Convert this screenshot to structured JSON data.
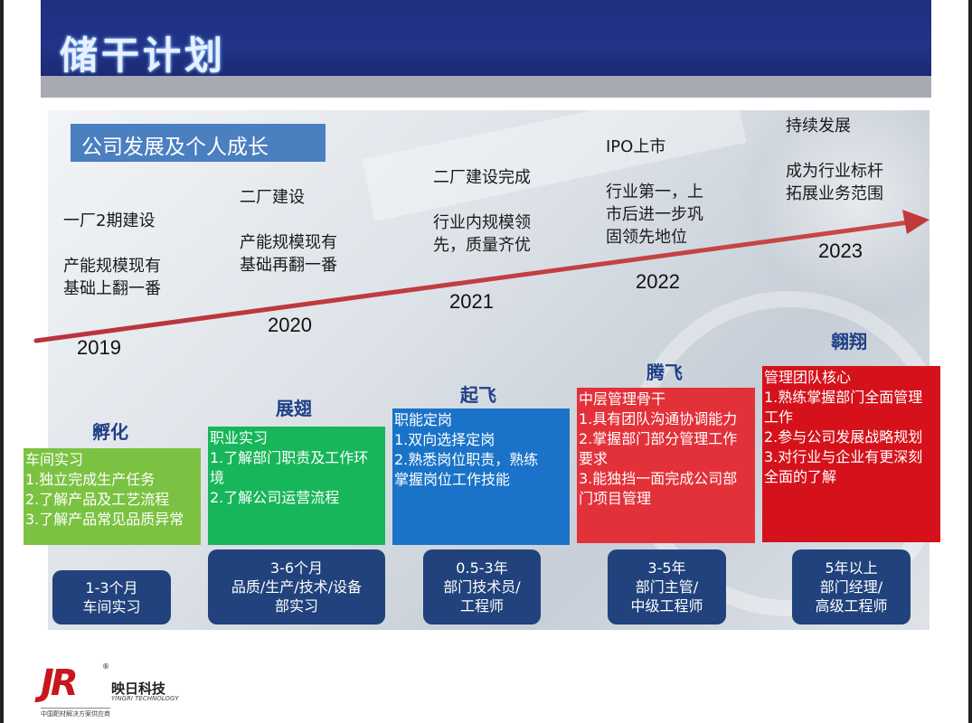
{
  "page": {
    "title": "储干计划"
  },
  "panel": {
    "subtitle": "公司发展及个人成长"
  },
  "milestones": [
    {
      "year": "2019",
      "lines": [
        "一厂2期建设",
        "",
        "产能规模现有",
        "基础上翻一番"
      ]
    },
    {
      "year": "2020",
      "lines": [
        "二厂建设",
        "",
        "产能规模现有",
        "基础再翻一番"
      ]
    },
    {
      "year": "2021",
      "lines": [
        "二厂建设完成",
        "",
        "行业内规模领",
        "先，质量齐优"
      ]
    },
    {
      "year": "2022",
      "lines": [
        "IPO上市",
        "",
        "行业第一，上",
        "市后进一步巩",
        "固领先地位"
      ]
    },
    {
      "year": "2023",
      "lines": [
        "持续发展",
        "",
        "成为行业标杆",
        "拓展业务范围"
      ]
    }
  ],
  "stages": [
    {
      "title": "孵化",
      "lines": [
        "车间实习",
        "1.独立完成生产任务",
        "2.了解产品及工艺流程",
        "3.了解产品常见品质异常"
      ],
      "color": "#7cc242",
      "tenure": [
        "1-3个月",
        "车间实习"
      ]
    },
    {
      "title": "展翅",
      "lines": [
        "职业实习",
        "1.了解部门职责及工作环",
        "境",
        "2.了解公司运营流程"
      ],
      "color": "#17b65a",
      "tenure": [
        "3-6个月",
        "品质/生产/技术/设备",
        "部实习"
      ]
    },
    {
      "title": "起飞",
      "lines": [
        "职能定岗",
        "1.双向选择定岗",
        "2.熟悉岗位职责，熟练",
        "掌握岗位工作技能"
      ],
      "color": "#1a73c8",
      "tenure": [
        "0.5-3年",
        "部门技术员/",
        "工程师"
      ]
    },
    {
      "title": "腾飞",
      "lines": [
        "中层管理骨干",
        "1.具有团队沟通协调能力",
        "2.掌握部门部分管理工作",
        "要求",
        "3.能独挡一面完成公司部",
        "门项目管理"
      ],
      "color": "#e3313a",
      "tenure": [
        "3-5年",
        "部门主管/",
        "中级工程师"
      ]
    },
    {
      "title": "翱翔",
      "lines": [
        "管理团队核心",
        "1.熟练掌握部门全面管理",
        "工作",
        "2.参与公司发展战略规划",
        "3.对行业与企业有更深刻",
        "全面的了解"
      ],
      "color": "#d5121b",
      "tenure": [
        "5年以上",
        "部门经理/",
        "高级工程师"
      ]
    }
  ],
  "colors": {
    "arrow": "#c0393b",
    "header": "#223388",
    "tenure_bg": "#21427c"
  },
  "logo": {
    "mark": "JR",
    "reg": "®",
    "cn": "映日科技",
    "en": "YINGRI TECHNOLOGY",
    "tag": "中国靶材解决方案供应商"
  }
}
